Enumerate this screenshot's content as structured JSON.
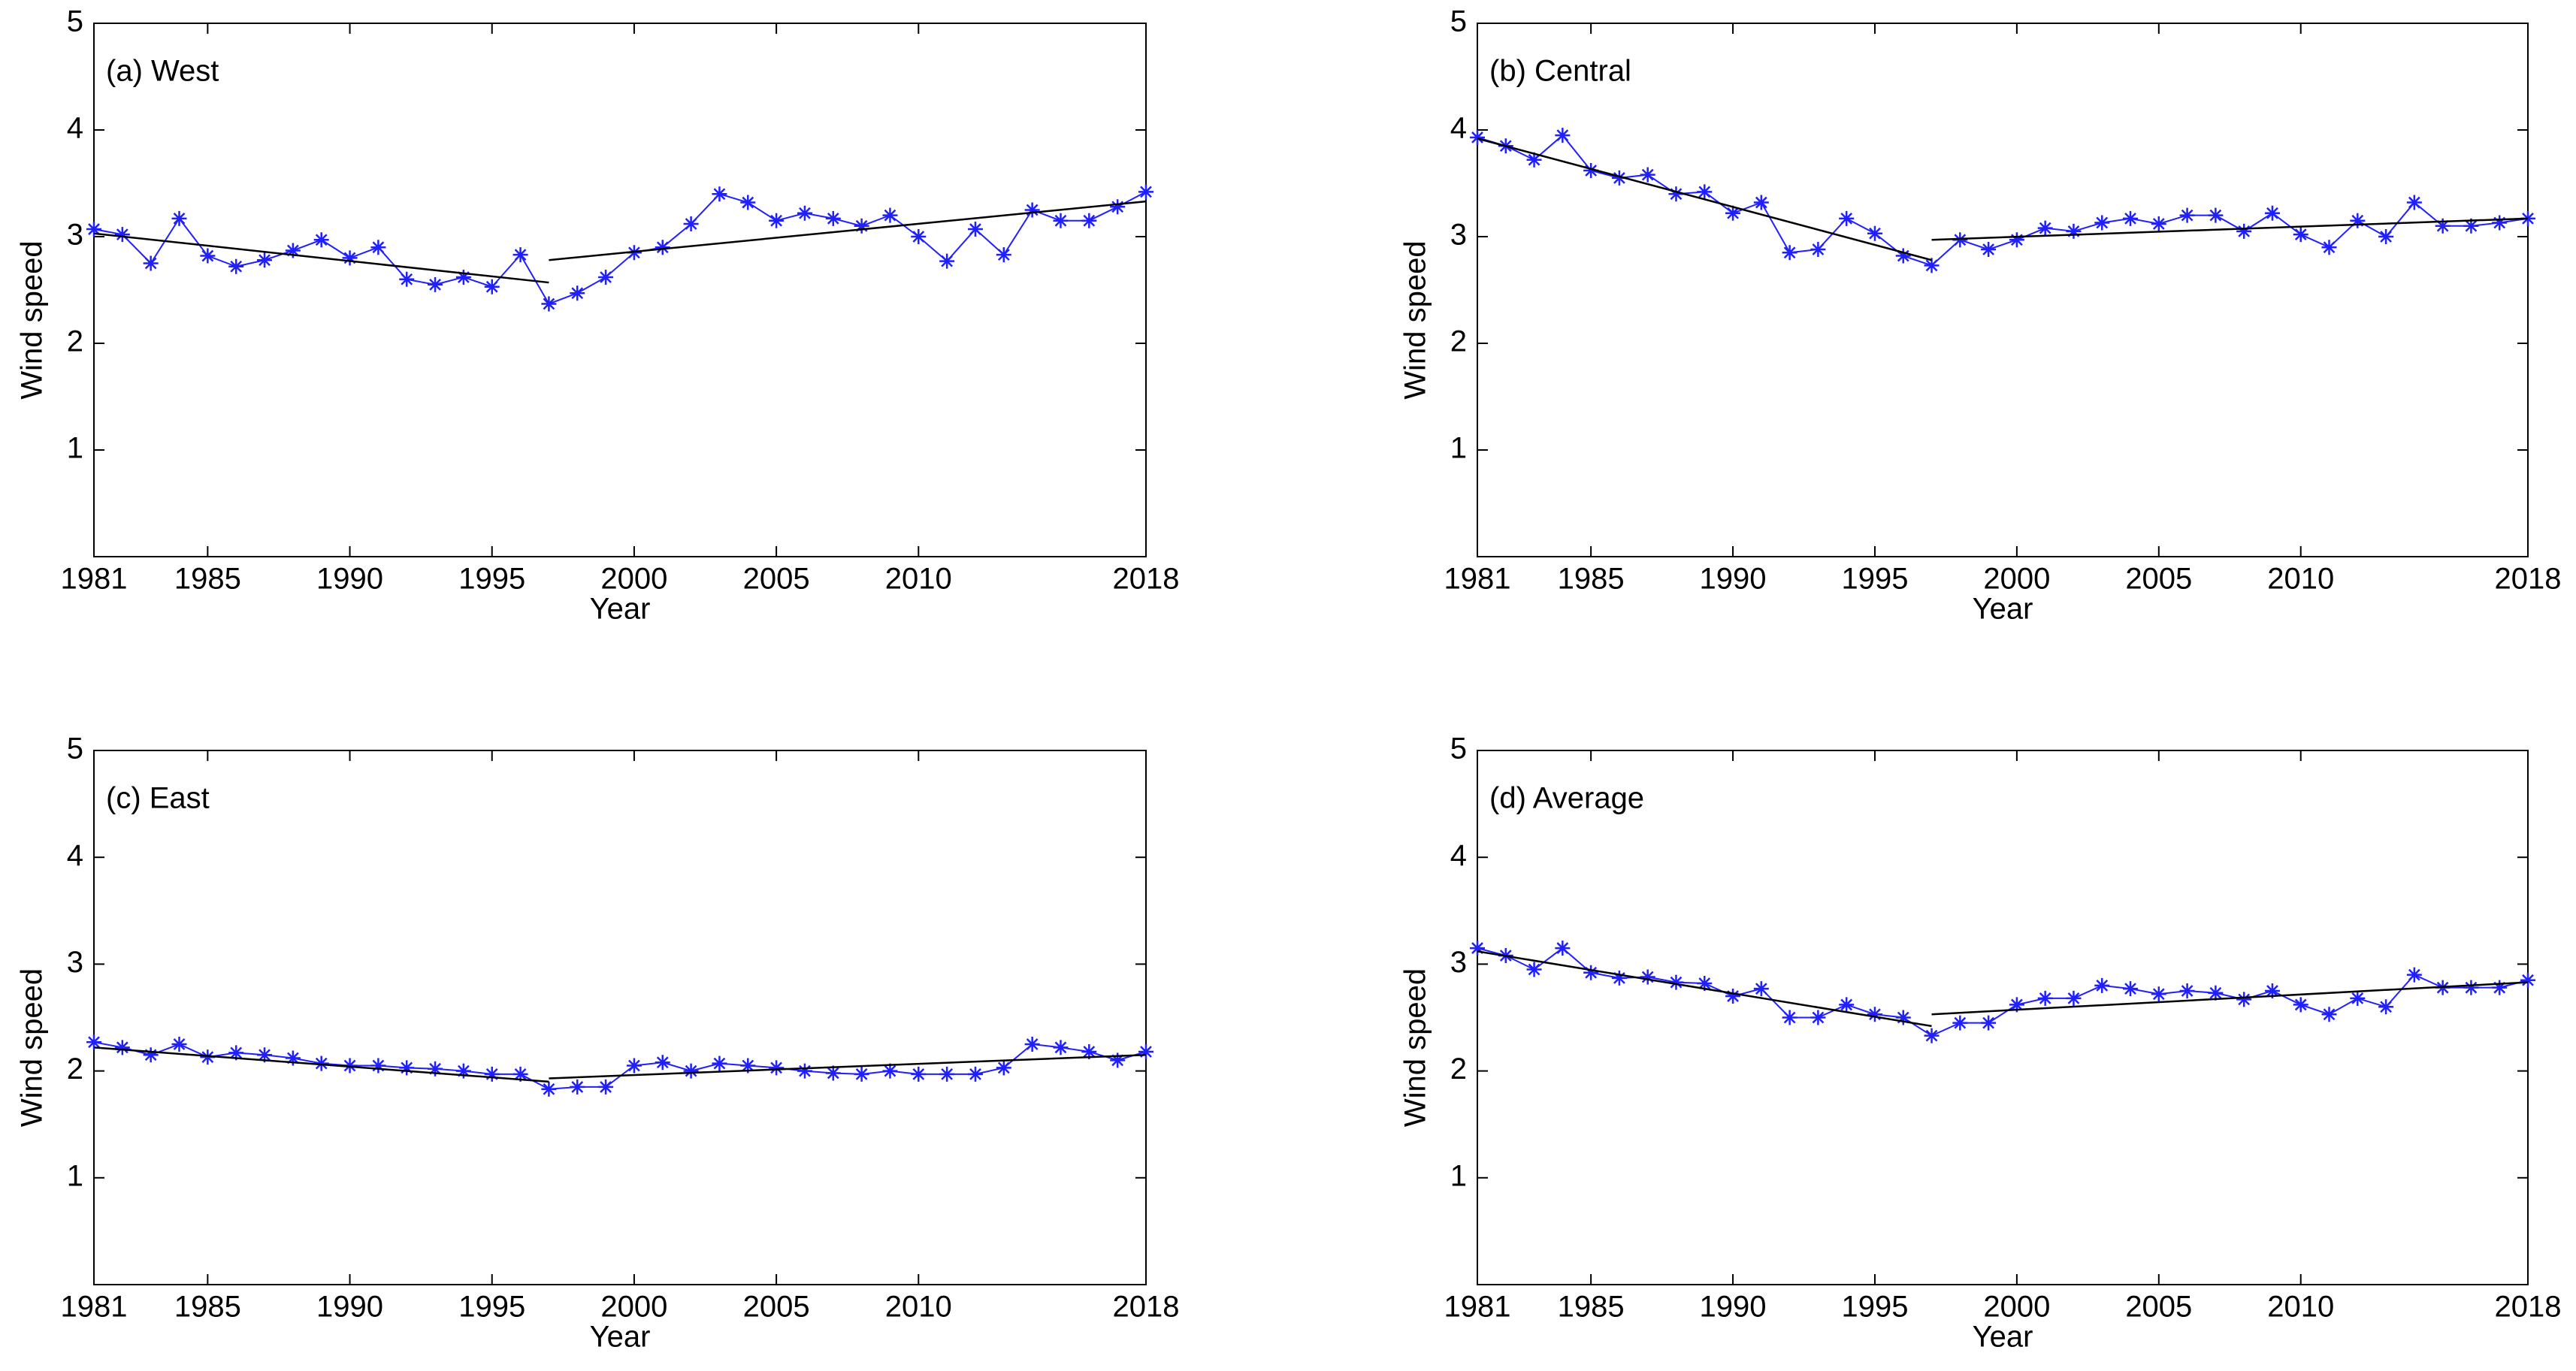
{
  "chart_data": [
    {
      "type": "line",
      "annotation": "(a) West",
      "xlabel": "Year",
      "ylabel": "Wind speed",
      "x": [
        1981,
        1982,
        1983,
        1984,
        1985,
        1986,
        1987,
        1988,
        1989,
        1990,
        1991,
        1992,
        1993,
        1994,
        1995,
        1996,
        1997,
        1998,
        1999,
        2000,
        2001,
        2002,
        2003,
        2004,
        2005,
        2006,
        2007,
        2008,
        2009,
        2010,
        2011,
        2012,
        2013,
        2014,
        2015,
        2016,
        2017,
        2018
      ],
      "series": [
        {
          "color": "#1f1fff",
          "values": [
            3.07,
            3.02,
            2.75,
            3.17,
            2.82,
            2.72,
            2.78,
            2.87,
            2.97,
            2.8,
            2.9,
            2.6,
            2.55,
            2.62,
            2.53,
            2.83,
            2.37,
            2.47,
            2.62,
            2.85,
            2.9,
            3.12,
            3.4,
            3.32,
            3.15,
            3.22,
            3.17,
            3.1,
            3.2,
            3.0,
            2.77,
            3.07,
            2.83,
            3.25,
            3.15,
            3.15,
            3.28,
            3.42
          ]
        }
      ],
      "trends": [
        {
          "color": "#000000",
          "x": [
            1981,
            1997
          ],
          "values": [
            3.03,
            2.57
          ]
        },
        {
          "color": "#000000",
          "x": [
            1997,
            2018
          ],
          "values": [
            2.78,
            3.33
          ]
        }
      ],
      "xlim": [
        1981,
        2018
      ],
      "xticks": [
        1981,
        1985,
        1990,
        1995,
        2000,
        2005,
        2010,
        2018
      ],
      "ylim": [
        0,
        5
      ],
      "yticks": [
        1,
        2,
        3,
        4,
        5
      ]
    },
    {
      "type": "line",
      "annotation": "(b) Central",
      "xlabel": "Year",
      "ylabel": "Wind speed",
      "x": [
        1981,
        1982,
        1983,
        1984,
        1985,
        1986,
        1987,
        1988,
        1989,
        1990,
        1991,
        1992,
        1993,
        1994,
        1995,
        1996,
        1997,
        1998,
        1999,
        2000,
        2001,
        2002,
        2003,
        2004,
        2005,
        2006,
        2007,
        2008,
        2009,
        2010,
        2011,
        2012,
        2013,
        2014,
        2015,
        2016,
        2017,
        2018
      ],
      "series": [
        {
          "color": "#1f1fff",
          "values": [
            3.93,
            3.85,
            3.72,
            3.95,
            3.62,
            3.55,
            3.58,
            3.4,
            3.42,
            3.22,
            3.32,
            2.85,
            2.88,
            3.17,
            3.03,
            2.82,
            2.73,
            2.97,
            2.88,
            2.97,
            3.08,
            3.05,
            3.13,
            3.17,
            3.12,
            3.2,
            3.2,
            3.05,
            3.22,
            3.02,
            2.9,
            3.15,
            3.0,
            3.32,
            3.1,
            3.1,
            3.13,
            3.17
          ]
        }
      ],
      "trends": [
        {
          "color": "#000000",
          "x": [
            1981,
            1997
          ],
          "values": [
            3.92,
            2.78
          ]
        },
        {
          "color": "#000000",
          "x": [
            1997,
            2018
          ],
          "values": [
            2.97,
            3.17
          ]
        }
      ],
      "xlim": [
        1981,
        2018
      ],
      "xticks": [
        1981,
        1985,
        1990,
        1995,
        2000,
        2005,
        2010,
        2018
      ],
      "ylim": [
        0,
        5
      ],
      "yticks": [
        1,
        2,
        3,
        4,
        5
      ]
    },
    {
      "type": "line",
      "annotation": "(c) East",
      "xlabel": "Year",
      "ylabel": "Wind speed",
      "x": [
        1981,
        1982,
        1983,
        1984,
        1985,
        1986,
        1987,
        1988,
        1989,
        1990,
        1991,
        1992,
        1993,
        1994,
        1995,
        1996,
        1997,
        1998,
        1999,
        2000,
        2001,
        2002,
        2003,
        2004,
        2005,
        2006,
        2007,
        2008,
        2009,
        2010,
        2011,
        2012,
        2013,
        2014,
        2015,
        2016,
        2017,
        2018
      ],
      "series": [
        {
          "color": "#1f1fff",
          "values": [
            2.27,
            2.22,
            2.15,
            2.25,
            2.13,
            2.17,
            2.15,
            2.12,
            2.07,
            2.05,
            2.05,
            2.03,
            2.02,
            2.0,
            1.97,
            1.97,
            1.83,
            1.85,
            1.85,
            2.05,
            2.08,
            2.0,
            2.07,
            2.05,
            2.03,
            2.0,
            1.98,
            1.97,
            2.0,
            1.97,
            1.97,
            1.97,
            2.03,
            2.25,
            2.22,
            2.18,
            2.1,
            2.18
          ]
        }
      ],
      "trends": [
        {
          "color": "#000000",
          "x": [
            1981,
            1997
          ],
          "values": [
            2.22,
            1.9
          ]
        },
        {
          "color": "#000000",
          "x": [
            1997,
            2018
          ],
          "values": [
            1.93,
            2.15
          ]
        }
      ],
      "xlim": [
        1981,
        2018
      ],
      "xticks": [
        1981,
        1985,
        1990,
        1995,
        2000,
        2005,
        2010,
        2018
      ],
      "ylim": [
        0,
        5
      ],
      "yticks": [
        1,
        2,
        3,
        4,
        5
      ]
    },
    {
      "type": "line",
      "annotation": "(d) Average",
      "xlabel": "Year",
      "ylabel": "Wind speed",
      "x": [
        1981,
        1982,
        1983,
        1984,
        1985,
        1986,
        1987,
        1988,
        1989,
        1990,
        1991,
        1992,
        1993,
        1994,
        1995,
        1996,
        1997,
        1998,
        1999,
        2000,
        2001,
        2002,
        2003,
        2004,
        2005,
        2006,
        2007,
        2008,
        2009,
        2010,
        2011,
        2012,
        2013,
        2014,
        2015,
        2016,
        2017,
        2018
      ],
      "series": [
        {
          "color": "#1f1fff",
          "values": [
            3.15,
            3.08,
            2.95,
            3.15,
            2.92,
            2.87,
            2.88,
            2.83,
            2.82,
            2.7,
            2.77,
            2.5,
            2.5,
            2.62,
            2.53,
            2.5,
            2.33,
            2.45,
            2.45,
            2.62,
            2.68,
            2.68,
            2.8,
            2.77,
            2.72,
            2.75,
            2.73,
            2.67,
            2.75,
            2.62,
            2.53,
            2.68,
            2.6,
            2.9,
            2.78,
            2.78,
            2.78,
            2.85
          ]
        }
      ],
      "trends": [
        {
          "color": "#000000",
          "x": [
            1981,
            1997
          ],
          "values": [
            3.12,
            2.42
          ]
        },
        {
          "color": "#000000",
          "x": [
            1997,
            2018
          ],
          "values": [
            2.53,
            2.83
          ]
        }
      ],
      "xlim": [
        1981,
        2018
      ],
      "xticks": [
        1981,
        1985,
        1990,
        1995,
        2000,
        2005,
        2010,
        2018
      ],
      "ylim": [
        0,
        5
      ],
      "yticks": [
        1,
        2,
        3,
        4,
        5
      ]
    }
  ]
}
